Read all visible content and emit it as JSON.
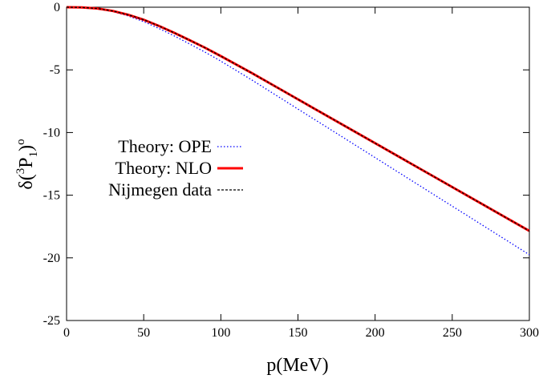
{
  "chart_data": {
    "type": "line",
    "xlabel": "p(MeV)",
    "ylabel": {
      "base": "δ(",
      "sup1": "3",
      "main": "P",
      "sub": "1",
      "close": ")",
      "sup2": "o"
    },
    "xlim": [
      0,
      300
    ],
    "ylim": [
      -25,
      0
    ],
    "xticks": [
      0,
      50,
      100,
      150,
      200,
      250,
      300
    ],
    "yticks": [
      0,
      -5,
      -10,
      -15,
      -20,
      -25
    ],
    "grid": false,
    "legend_position": "center-left",
    "series": [
      {
        "name": "Theory: OPE",
        "color": "#0000ff",
        "style": "dotted",
        "x": [
          0,
          10,
          20,
          30,
          40,
          50,
          60,
          70,
          80,
          90,
          100,
          120,
          140,
          160,
          180,
          200,
          220,
          240,
          260,
          280,
          300
        ],
        "y": [
          0,
          -0.02,
          -0.12,
          -0.35,
          -0.7,
          -1.15,
          -1.7,
          -2.3,
          -2.95,
          -3.6,
          -4.3,
          -5.8,
          -7.35,
          -8.9,
          -10.45,
          -12.0,
          -13.55,
          -15.1,
          -16.65,
          -18.2,
          -19.75
        ]
      },
      {
        "name": "Theory: NLO",
        "color": "#ff0000",
        "style": "solid",
        "x": [
          0,
          10,
          20,
          30,
          40,
          50,
          60,
          70,
          80,
          90,
          100,
          120,
          140,
          160,
          180,
          200,
          220,
          240,
          260,
          280,
          300
        ],
        "y": [
          0,
          -0.02,
          -0.1,
          -0.3,
          -0.6,
          -1.0,
          -1.5,
          -2.05,
          -2.65,
          -3.25,
          -3.9,
          -5.25,
          -6.65,
          -8.05,
          -9.45,
          -10.85,
          -12.25,
          -13.65,
          -15.05,
          -16.45,
          -17.85
        ]
      },
      {
        "name": "Nijmegen data",
        "color": "#000000",
        "style": "dashed",
        "x": [
          0,
          10,
          20,
          30,
          40,
          50,
          60,
          70,
          80,
          90,
          100,
          120,
          140,
          160,
          180,
          200,
          220,
          240,
          260,
          280,
          300
        ],
        "y": [
          0,
          -0.02,
          -0.1,
          -0.3,
          -0.6,
          -1.0,
          -1.5,
          -2.05,
          -2.65,
          -3.25,
          -3.9,
          -5.25,
          -6.65,
          -8.05,
          -9.45,
          -10.85,
          -12.25,
          -13.65,
          -15.05,
          -16.45,
          -17.85
        ]
      }
    ]
  }
}
